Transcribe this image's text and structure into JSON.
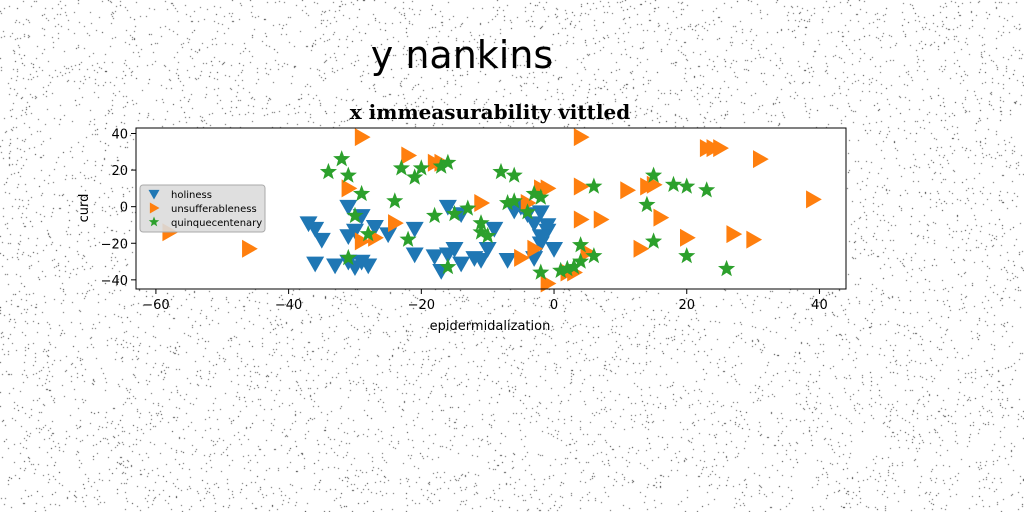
{
  "chart_data": {
    "type": "scatter",
    "suptitle": "y nankins",
    "title": "x immeasurability vittled",
    "xlabel": "epidermidalization",
    "ylabel": "curd",
    "xlim": [
      -63,
      44
    ],
    "ylim": [
      -45,
      43
    ],
    "xticks": [
      -60,
      -40,
      -20,
      0,
      20,
      40
    ],
    "yticks": [
      -40,
      -20,
      0,
      20,
      40
    ],
    "xtick_labels": [
      "−60",
      "−40",
      "−20",
      "0",
      "20",
      "40"
    ],
    "ytick_labels": [
      "−40",
      "−20",
      "0",
      "20",
      "40"
    ],
    "grid": false,
    "legend_position": "center-left",
    "series": [
      {
        "name": "holiness",
        "marker": "triangle-down",
        "color": "#1f77b4",
        "points": [
          [
            -37,
            -9
          ],
          [
            -36,
            -12
          ],
          [
            -35,
            -18
          ],
          [
            -36,
            -31
          ],
          [
            -33,
            -32
          ],
          [
            -31,
            -30
          ],
          [
            -30,
            -33
          ],
          [
            -29,
            -30
          ],
          [
            -28,
            -32
          ],
          [
            -31,
            0
          ],
          [
            -29,
            -5
          ],
          [
            -30,
            -13
          ],
          [
            -31,
            -16
          ],
          [
            -27,
            -11
          ],
          [
            -25,
            -15
          ],
          [
            -21,
            -12
          ],
          [
            -21,
            -26
          ],
          [
            -18,
            -27
          ],
          [
            -17,
            -35
          ],
          [
            -16,
            -26
          ],
          [
            -15,
            -23
          ],
          [
            -14,
            -31
          ],
          [
            -12,
            -28
          ],
          [
            -11,
            -29
          ],
          [
            -10,
            -23
          ],
          [
            -9,
            -12
          ],
          [
            -7,
            -29
          ],
          [
            -16,
            0
          ],
          [
            -14,
            -4
          ],
          [
            -6,
            -2
          ],
          [
            -5,
            0
          ],
          [
            -4,
            -4
          ],
          [
            -3,
            -9
          ],
          [
            -2,
            -20
          ],
          [
            -2,
            -3
          ],
          [
            -1,
            -13
          ],
          [
            -3,
            -28
          ],
          [
            0,
            -23
          ],
          [
            -1,
            -10
          ],
          [
            -2,
            -16
          ]
        ]
      },
      {
        "name": "unsufferableness",
        "marker": "triangle-right",
        "color": "#ff7f0e",
        "points": [
          [
            -58,
            -14
          ],
          [
            -46,
            -23
          ],
          [
            -29,
            38
          ],
          [
            -31,
            10
          ],
          [
            -29,
            -19
          ],
          [
            -27,
            -17
          ],
          [
            -24,
            -9
          ],
          [
            -22,
            28
          ],
          [
            -18,
            24
          ],
          [
            -17,
            24
          ],
          [
            -11,
            2
          ],
          [
            -5,
            -28
          ],
          [
            -4,
            2
          ],
          [
            -3,
            -23
          ],
          [
            -2,
            10
          ],
          [
            -1,
            10
          ],
          [
            -1,
            -42
          ],
          [
            2,
            -36
          ],
          [
            3,
            -36
          ],
          [
            4,
            11
          ],
          [
            4,
            -7
          ],
          [
            4,
            38
          ],
          [
            5,
            -25
          ],
          [
            7,
            -7
          ],
          [
            11,
            9
          ],
          [
            13,
            -23
          ],
          [
            14,
            11
          ],
          [
            15,
            12
          ],
          [
            16,
            -6
          ],
          [
            20,
            -17
          ],
          [
            23,
            32
          ],
          [
            24,
            32
          ],
          [
            25,
            32
          ],
          [
            27,
            -15
          ],
          [
            30,
            -18
          ],
          [
            31,
            26
          ],
          [
            39,
            4
          ]
        ]
      },
      {
        "name": "quinquecentenary",
        "marker": "star",
        "color": "#2ca02c",
        "points": [
          [
            -34,
            19
          ],
          [
            -32,
            26
          ],
          [
            -31,
            17
          ],
          [
            -29,
            7
          ],
          [
            -31,
            -28
          ],
          [
            -30,
            -5
          ],
          [
            -28,
            -15
          ],
          [
            -24,
            3
          ],
          [
            -23,
            21
          ],
          [
            -22,
            -18
          ],
          [
            -21,
            16
          ],
          [
            -20,
            21
          ],
          [
            -18,
            -5
          ],
          [
            -17,
            22
          ],
          [
            -16,
            24
          ],
          [
            -16,
            -33
          ],
          [
            -15,
            -4
          ],
          [
            -13,
            -1
          ],
          [
            -11,
            -9
          ],
          [
            -11,
            -14
          ],
          [
            -10,
            -16
          ],
          [
            -8,
            19
          ],
          [
            -7,
            2
          ],
          [
            -6,
            17
          ],
          [
            -6,
            3
          ],
          [
            -4,
            -3
          ],
          [
            -3,
            7
          ],
          [
            -2,
            5
          ],
          [
            -2,
            -36
          ],
          [
            1,
            -35
          ],
          [
            2,
            -34
          ],
          [
            3,
            -33
          ],
          [
            4,
            -21
          ],
          [
            4,
            -30
          ],
          [
            6,
            -27
          ],
          [
            6,
            11
          ],
          [
            14,
            1
          ],
          [
            15,
            17
          ],
          [
            15,
            -19
          ],
          [
            18,
            12
          ],
          [
            20,
            11
          ],
          [
            20,
            -27
          ],
          [
            23,
            9
          ],
          [
            26,
            -34
          ]
        ]
      }
    ]
  }
}
